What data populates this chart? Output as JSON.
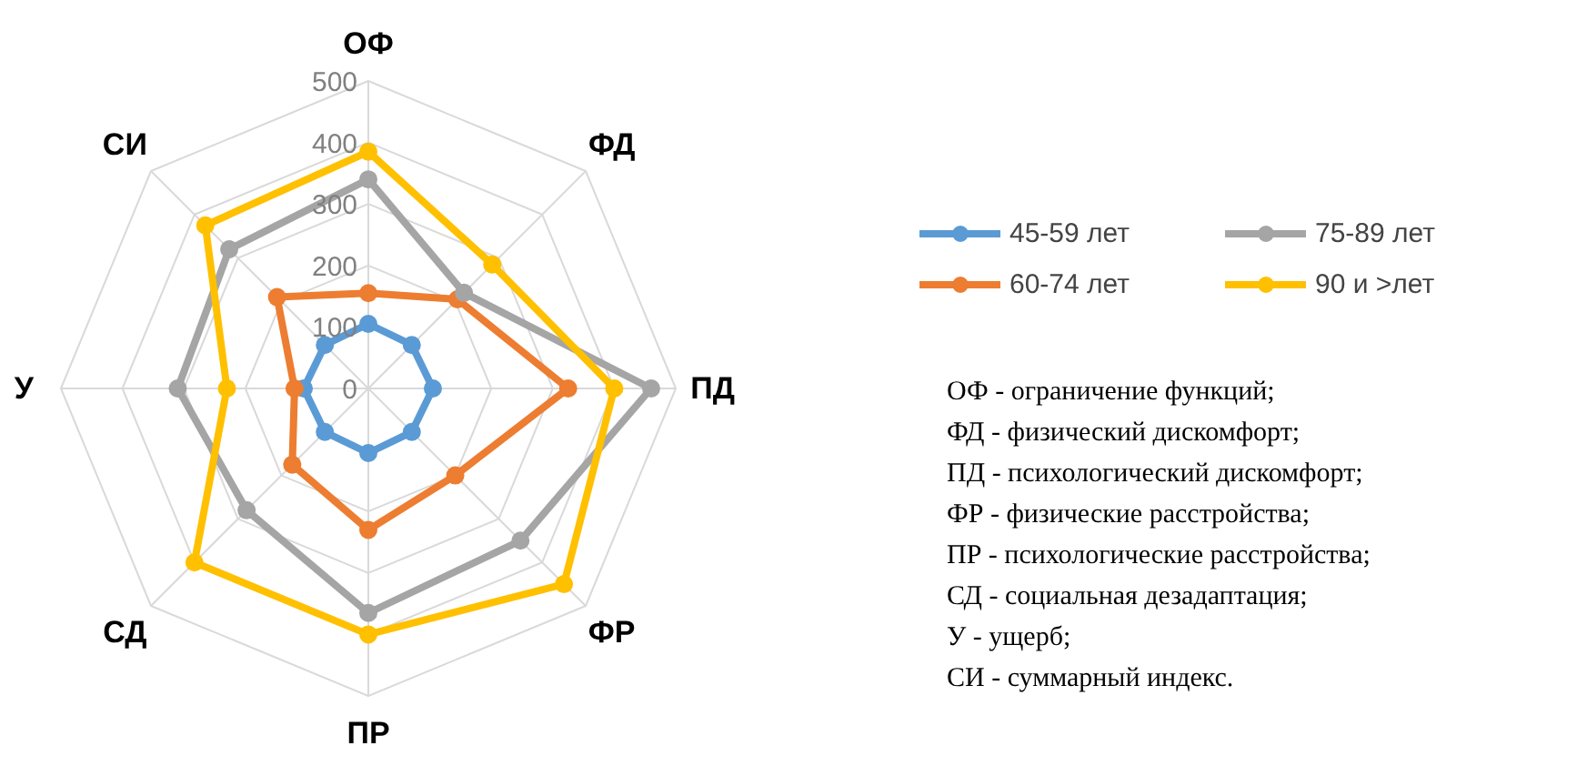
{
  "chart_data": {
    "type": "radar",
    "categories": [
      "ОФ",
      "ФД",
      "ПД",
      "ФР",
      "ПР",
      "СД",
      "У",
      "СИ"
    ],
    "series": [
      {
        "name": "45-59 лет",
        "color": "#5b9bd5",
        "values": [
          105,
          100,
          105,
          100,
          105,
          100,
          105,
          100
        ]
      },
      {
        "name": "60-74 лет",
        "color": "#ed7d31",
        "values": [
          155,
          205,
          325,
          200,
          230,
          175,
          120,
          210
        ]
      },
      {
        "name": "75-89 лет",
        "color": "#a5a5a5",
        "values": [
          340,
          220,
          460,
          350,
          365,
          280,
          310,
          320
        ]
      },
      {
        "name": "90 и >лет",
        "color": "#ffc000",
        "values": [
          385,
          285,
          400,
          450,
          400,
          400,
          230,
          375
        ]
      }
    ],
    "ylim": [
      0,
      500
    ],
    "yticks": [
      0,
      100,
      200,
      300,
      400,
      500
    ],
    "grid": true,
    "marker": "circle",
    "legend": "right",
    "annotations": [
      "ОФ - ограничение функций;",
      "ФД - физический дискомфорт;",
      "ПД - психологический дискомфорт;",
      "ФР - физические расстройства;",
      "ПР - психологические расстройства;",
      "СД - социальная дезадаптация;",
      "У - ущерб;",
      "СИ - суммарный индекс."
    ]
  }
}
